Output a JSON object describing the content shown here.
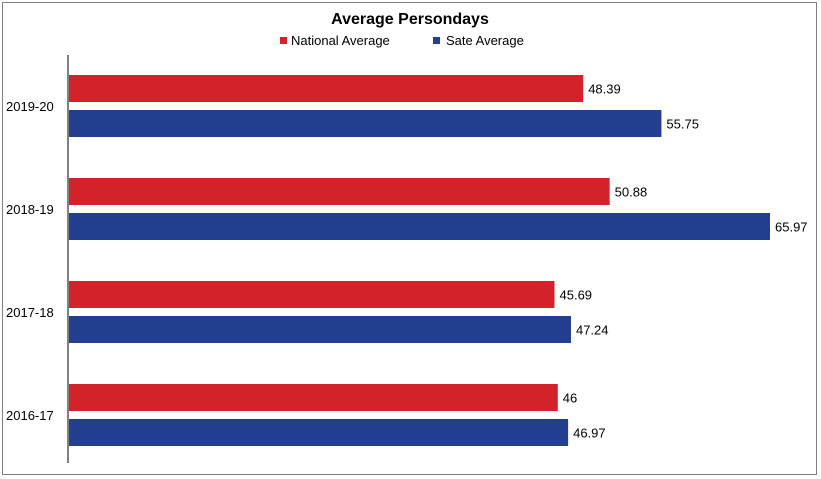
{
  "chart_data": {
    "type": "bar",
    "orientation": "horizontal",
    "title": "Average Persondays",
    "xlabel": "",
    "ylabel": "",
    "categories": [
      "2019-20",
      "2018-19",
      "2017-18",
      "2016-17"
    ],
    "series": [
      {
        "name": "National Average",
        "color": "#d3222a",
        "values": [
          48.39,
          50.88,
          45.69,
          46
        ],
        "labels": [
          "48.39",
          "50.88",
          "45.69",
          "46"
        ]
      },
      {
        "name": "Sate Average",
        "color": "#243f8f",
        "values": [
          55.75,
          65.97,
          47.24,
          46.97
        ],
        "labels": [
          "55.75",
          "65.97",
          "47.24",
          "46.97"
        ]
      }
    ],
    "xlim": [
      0,
      65.97
    ],
    "grid": false,
    "legend_position": "top-center",
    "x_axis_visible": false
  }
}
